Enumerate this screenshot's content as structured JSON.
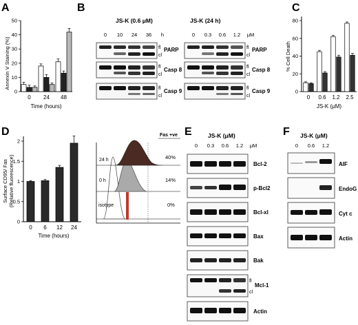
{
  "panels": {
    "A": {
      "letter": "A",
      "chart_data": {
        "type": "bar",
        "ylabel": "Annexin V Staining (%)",
        "xlabel": "Time (hours)",
        "categories": [
          "0",
          "24",
          "48"
        ],
        "ylim": [
          0,
          50
        ],
        "yticks": [
          "0",
          "10",
          "20",
          "30",
          "40",
          "50"
        ],
        "series": [
          {
            "values": [
              5,
              18,
              21
            ],
            "errors": [
              1.5,
              1.5,
              2
            ],
            "color": "#ffffff"
          },
          {
            "values": [
              3,
              10,
              13
            ],
            "errors": [
              1.5,
              2,
              1.5
            ],
            "color": "#222222"
          },
          {
            "values": [
              3,
              5,
              42
            ],
            "errors": [
              1,
              1,
              2.5
            ],
            "color": "#b8b8b8"
          }
        ]
      }
    },
    "B": {
      "letter": "B",
      "left_header": "JS-K (0.6 μM)",
      "left_ticks": [
        "0",
        "10",
        "24",
        "36",
        "h"
      ],
      "right_header": "JS-K (24 h)",
      "right_ticks": [
        "0",
        "0.3",
        "0.6",
        "1.2",
        "μM"
      ],
      "blots": [
        {
          "fl": "fl",
          "cl": "cl",
          "name": "PARP"
        },
        {
          "fl": "fl",
          "cl": "cl",
          "name": "Casp 8"
        },
        {
          "fl": "fl",
          "cl": "cl",
          "name": "Casp 9"
        }
      ]
    },
    "C": {
      "letter": "C",
      "chart_data": {
        "type": "bar",
        "ylabel": "% Cell Death",
        "xlabel": "JS-K (μM)",
        "categories": [
          "0",
          "0.6",
          "1.2",
          "2.5"
        ],
        "ylim": [
          0,
          80
        ],
        "yticks": [
          "0",
          "20",
          "40",
          "60",
          "80"
        ],
        "series": [
          {
            "values": [
              10,
              45,
              62,
              77
            ],
            "errors": [
              1,
              1.5,
              1.5,
              1.5
            ],
            "color": "#ffffff"
          },
          {
            "values": [
              9,
              21,
              39,
              41
            ],
            "errors": [
              1,
              1.5,
              2,
              2
            ],
            "color": "#333333"
          }
        ]
      }
    },
    "D": {
      "letter": "D",
      "chart_data": {
        "type": "bar",
        "ylabel_line1": "Surface CD95/ Fas",
        "ylabel_line2": "(Relative fluorescence)",
        "xlabel": "Time (hours)",
        "categories": [
          "0",
          "6",
          "12",
          "24"
        ],
        "ylim": [
          0,
          2
        ],
        "yticks": [
          "0",
          "0.5",
          "1",
          "1.5",
          "2"
        ],
        "series": [
          {
            "values": [
              1.0,
              1.02,
              1.35,
              1.95
            ],
            "errors": [
              0.02,
              0.03,
              0.05,
              0.18
            ],
            "color": "#2a2a2a"
          }
        ]
      },
      "histogram": {
        "title": "Fas +ve",
        "rows": [
          {
            "label": "24 h",
            "value": "40%"
          },
          {
            "label": "0 h",
            "value": "14%"
          },
          {
            "label": "isotype",
            "value": "0%"
          }
        ]
      }
    },
    "E": {
      "letter": "E",
      "header": "JS-K (μM)",
      "ticks": [
        "0",
        "0.3",
        "0.6",
        "1.2",
        "μM"
      ],
      "blots": [
        "Bcl-2",
        "p-Bcl2",
        "Bcl-xl",
        "Bax",
        "Bak",
        "Mcl-1",
        "Actin"
      ],
      "mcl_fl": "fl",
      "mcl_cl": "cl"
    },
    "F": {
      "letter": "F",
      "header": "JS-K (μM)",
      "ticks": [
        "0",
        "0.6",
        "1.2"
      ],
      "blots": [
        "AIF",
        "EndoG",
        "Cyt c",
        "Actin"
      ],
      "cyt_italic": "c"
    }
  }
}
